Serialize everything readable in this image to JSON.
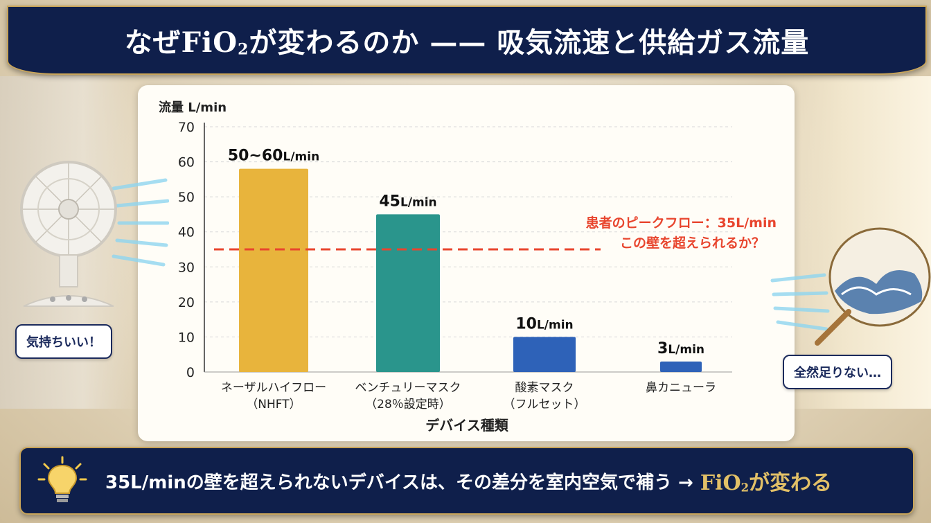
{
  "title": {
    "part1": "なぜFiO",
    "sub": "2",
    "part2": "が変わるのか —— 吸気流速と供給ガス流量"
  },
  "chart_data": {
    "type": "bar",
    "ylabel": "流量 L/min",
    "xlabel": "デバイス種類",
    "ylim": [
      0,
      70
    ],
    "yticks": [
      0,
      10,
      20,
      30,
      40,
      50,
      60,
      70
    ],
    "grid": true,
    "categories": [
      {
        "line1": "ネーザルハイフロー",
        "line2": "（NHFT）"
      },
      {
        "line1": "ベンチュリーマスク",
        "line2": "（28％設定時）"
      },
      {
        "line1": "酸素マスク",
        "line2": "（フルセット）"
      },
      {
        "line1": "鼻カニューラ",
        "line2": ""
      }
    ],
    "values": [
      58,
      45,
      10,
      3
    ],
    "value_labels": [
      {
        "num": "50~60",
        "unit": "L/min"
      },
      {
        "num": "45",
        "unit": "L/min"
      },
      {
        "num": "10",
        "unit": "L/min"
      },
      {
        "num": "3",
        "unit": "L/min"
      }
    ],
    "bar_colors": [
      "#e8b43c",
      "#2a958c",
      "#2e62b8",
      "#2e62b8"
    ],
    "reference_line": {
      "value": 35,
      "color": "#e8452e",
      "label_line1": "患者のピークフロー：35L/min",
      "label_line2": "この壁を超えられるか？"
    }
  },
  "fan": {
    "icon": "electric-fan-icon",
    "bubble": "気持ちいい！"
  },
  "uchiwa": {
    "icon": "paper-fan-icon",
    "bubble": "全然足りない…"
  },
  "footer": {
    "icon": "lightbulb-icon",
    "text": "35L/minの壁を超えられないデバイスは、その差分を室内空気で補う →",
    "accent_part1": "FiO",
    "accent_sub": "2",
    "accent_part2": "が変わる"
  },
  "colors": {
    "navy": "#0f1f4b",
    "gold": "#c9a55a",
    "accent_gold": "#e2c067",
    "red": "#e8452e"
  }
}
